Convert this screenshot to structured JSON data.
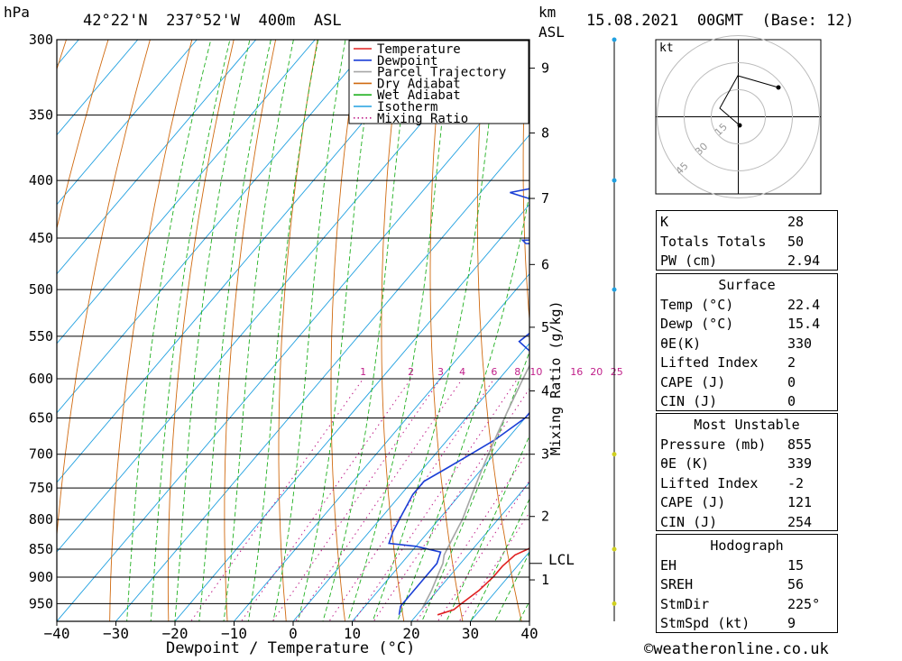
{
  "header": {
    "unit_pressure": "hPa",
    "location": "42°22'N  237°52'W  400m  ASL",
    "unit_km": "km",
    "unit_asl": "ASL",
    "datetime": "15.08.2021  00GMT  (Base: 12)"
  },
  "chart_data": {
    "type": "line",
    "title": "42°22'N  237°52'W  400m  ASL",
    "xlabel": "Dewpoint / Temperature (°C)",
    "ylabel": "hPa",
    "x_ticks": [
      -40,
      -30,
      -20,
      -10,
      0,
      10,
      20,
      30,
      40
    ],
    "pressure_levels": [
      300,
      350,
      400,
      450,
      500,
      550,
      600,
      650,
      700,
      750,
      800,
      850,
      900,
      950
    ],
    "ylim": [
      985,
      300
    ],
    "km_ticks": [
      {
        "km": "1",
        "p": 905
      },
      {
        "km": "2",
        "p": 795
      },
      {
        "km": "3",
        "p": 700
      },
      {
        "km": "4",
        "p": 615
      },
      {
        "km": "5",
        "p": 540
      },
      {
        "km": "6",
        "p": 475
      },
      {
        "km": "7",
        "p": 415
      },
      {
        "km": "8",
        "p": 363
      },
      {
        "km": "9",
        "p": 318
      }
    ],
    "km_axis_label": "km",
    "lcl_label": "LCL",
    "lcl_pressure": 875,
    "mixing_ratio_axis_label": "Mixing Ratio (g/kg)",
    "mixing_ratios": [
      "1",
      "2",
      "3",
      "4",
      "6",
      "8",
      "10",
      "16",
      "20",
      "25"
    ],
    "legend": [
      "Temperature",
      "Dewpoint",
      "Parcel Trajectory",
      "Dry Adiabat",
      "Wet Adiabat",
      "Isotherm",
      "Mixing Ratio"
    ],
    "legend_placement": "top-right",
    "series": [
      {
        "name": "Temperature",
        "color": "#e02020",
        "points": [
          [
            23.5,
            972
          ],
          [
            25.5,
            962
          ],
          [
            26,
            948
          ],
          [
            27,
            925
          ],
          [
            27.5,
            900
          ],
          [
            27.5,
            880
          ],
          [
            28,
            860
          ],
          [
            30,
            845
          ],
          [
            31,
            820
          ],
          [
            30,
            790
          ],
          [
            28,
            770
          ],
          [
            27,
            750
          ],
          [
            24,
            720
          ],
          [
            21,
            690
          ],
          [
            18,
            660
          ],
          [
            15,
            630
          ],
          [
            12,
            600
          ],
          [
            9,
            570
          ],
          [
            6,
            540
          ],
          [
            4,
            515
          ],
          [
            3,
            495
          ],
          [
            4,
            480
          ],
          [
            3,
            465
          ],
          [
            2,
            450
          ],
          [
            0,
            440
          ],
          [
            -1,
            425
          ],
          [
            -1,
            410
          ],
          [
            -3,
            395
          ],
          [
            -6,
            380
          ],
          [
            -9,
            365
          ],
          [
            -11,
            350
          ],
          [
            -14,
            335
          ],
          [
            -16,
            322
          ],
          [
            -18,
            308
          ],
          [
            -19,
            300
          ]
        ]
      },
      {
        "name": "Dewpoint",
        "color": "#1a3fd6",
        "points": [
          [
            17,
            972
          ],
          [
            16,
            955
          ],
          [
            16,
            925
          ],
          [
            16,
            900
          ],
          [
            16,
            875
          ],
          [
            15,
            855
          ],
          [
            10,
            845
          ],
          [
            5,
            840
          ],
          [
            4,
            820
          ],
          [
            3,
            790
          ],
          [
            2,
            760
          ],
          [
            2,
            740
          ],
          [
            4,
            720
          ],
          [
            6,
            700
          ],
          [
            8,
            680
          ],
          [
            10,
            650
          ],
          [
            10,
            620
          ],
          [
            8,
            590
          ],
          [
            2,
            570
          ],
          [
            -2,
            556
          ],
          [
            -1,
            540
          ],
          [
            1,
            530
          ],
          [
            0,
            520
          ],
          [
            -2,
            505
          ],
          [
            -2,
            498
          ],
          [
            2,
            492
          ],
          [
            4,
            486
          ],
          [
            4,
            478
          ],
          [
            0,
            475
          ],
          [
            -2,
            468
          ],
          [
            -2,
            465
          ],
          [
            -5,
            462
          ],
          [
            -5,
            458
          ],
          [
            -15,
            455
          ],
          [
            -16,
            452
          ],
          [
            -6,
            450
          ],
          [
            -4,
            448
          ],
          [
            -2,
            446
          ],
          [
            -4,
            443
          ],
          [
            0,
            440
          ],
          [
            -6,
            436
          ],
          [
            -14,
            433
          ],
          [
            -16,
            425
          ],
          [
            -17,
            420
          ],
          [
            -25,
            410
          ],
          [
            -18,
            402
          ],
          [
            -20,
            399
          ],
          [
            -5,
            396
          ],
          [
            -5,
            392
          ],
          [
            -5,
            380
          ],
          [
            -3,
            370
          ],
          [
            -3,
            358
          ],
          [
            -2,
            350
          ],
          [
            -5,
            345
          ],
          [
            -6,
            338
          ],
          [
            -8,
            330
          ],
          [
            -10,
            320
          ],
          [
            -12,
            313
          ],
          [
            -10,
            305
          ],
          [
            -10,
            300
          ]
        ]
      },
      {
        "name": "Parcel Trajectory",
        "color": "#a6a6a6",
        "points": [
          [
            20,
            960
          ],
          [
            19,
            925
          ],
          [
            18,
            900
          ],
          [
            17,
            875
          ],
          [
            16,
            860
          ],
          [
            15,
            830
          ],
          [
            14,
            800
          ],
          [
            12,
            760
          ],
          [
            10,
            720
          ],
          [
            8,
            680
          ],
          [
            6,
            640
          ],
          [
            4,
            600
          ],
          [
            2,
            560
          ],
          [
            -1,
            520
          ],
          [
            -4,
            480
          ],
          [
            -7,
            450
          ],
          [
            -10,
            420
          ],
          [
            -13,
            395
          ],
          [
            -16,
            370
          ],
          [
            -19,
            348
          ],
          [
            -22,
            325
          ],
          [
            -25,
            308
          ]
        ]
      }
    ],
    "label_dry_adiabat_color": "#d06a10",
    "label_wet_adiabat_color": "#20b020",
    "label_isotherm_color": "#20a0e0",
    "label_mixing_color": "#c0208a"
  },
  "hodograph": {
    "unit": "kt",
    "ring_labels": [
      "15",
      "30",
      "45"
    ]
  },
  "wind_levels_pressure": [
    300,
    400,
    500,
    700,
    850,
    950
  ],
  "tables": {
    "indices": [
      {
        "key": "K",
        "value": "28"
      },
      {
        "key": "Totals Totals",
        "value": "50"
      },
      {
        "key": "PW (cm)",
        "value": "2.94"
      }
    ],
    "surface_title": "Surface",
    "surface": [
      {
        "key": "Temp (°C)",
        "value": "22.4"
      },
      {
        "key": "Dewp (°C)",
        "value": "15.4"
      },
      {
        "key": "θE(K)",
        "value": "330"
      },
      {
        "key": "Lifted Index",
        "value": "2"
      },
      {
        "key": "CAPE (J)",
        "value": "0"
      },
      {
        "key": "CIN (J)",
        "value": "0"
      }
    ],
    "mu_title": "Most Unstable",
    "mu": [
      {
        "key": "Pressure (mb)",
        "value": "855"
      },
      {
        "key": "θE (K)",
        "value": "339"
      },
      {
        "key": "Lifted Index",
        "value": "-2"
      },
      {
        "key": "CAPE (J)",
        "value": "121"
      },
      {
        "key": "CIN (J)",
        "value": "254"
      }
    ],
    "hodo_title": "Hodograph",
    "hodo": [
      {
        "key": "EH",
        "value": "15"
      },
      {
        "key": "SREH",
        "value": "56"
      },
      {
        "key": "StmDir",
        "value": "225°"
      },
      {
        "key": "StmSpd (kt)",
        "value": "9"
      }
    ]
  },
  "footer": {
    "copyright": "©weatheronline.co.uk"
  }
}
